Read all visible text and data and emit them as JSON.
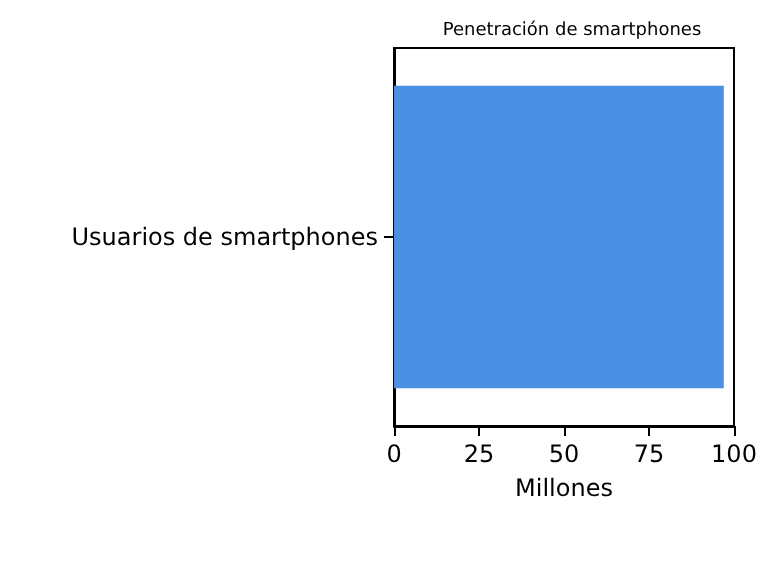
{
  "chart_data": {
    "type": "bar",
    "orientation": "horizontal",
    "title": "Penetración de smartphones",
    "xlabel": "Millones",
    "categories": [
      "Usuarios de smartphones"
    ],
    "values": [
      97
    ],
    "color": "#4a90e2",
    "xlim": [
      0,
      100
    ],
    "xticks": [
      0,
      25,
      50,
      75,
      100
    ],
    "grid": false
  }
}
